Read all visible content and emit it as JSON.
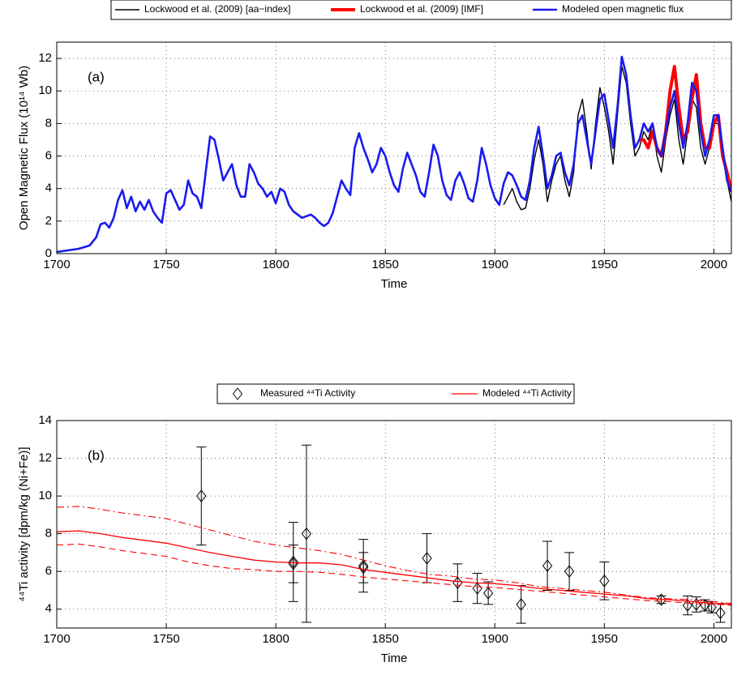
{
  "chart_data": [
    {
      "type": "line",
      "ylabel": "Open Magnetic Flux (10¹⁴ Wb)",
      "xlabel": "Time",
      "annotation": "(a)",
      "xlim": [
        1700,
        2008
      ],
      "ylim": [
        0,
        13
      ],
      "xticks": [
        1700,
        1750,
        1800,
        1850,
        1900,
        1950,
        2000
      ],
      "yticks": [
        0,
        2,
        4,
        6,
        8,
        10,
        12
      ],
      "grid": true,
      "legend": "top",
      "series": [
        {
          "name": "Lockwood et al. (2009) [aa−index]",
          "color": "#000000",
          "width": 1.4,
          "x": [
            1904,
            1906,
            1908,
            1910,
            1912,
            1914,
            1916,
            1918,
            1920,
            1922,
            1924,
            1926,
            1928,
            1930,
            1932,
            1934,
            1936,
            1938,
            1940,
            1942,
            1944,
            1946,
            1948,
            1950,
            1952,
            1954,
            1956,
            1958,
            1960,
            1962,
            1964,
            1966,
            1968,
            1970,
            1972,
            1974,
            1976,
            1978,
            1980,
            1982,
            1984,
            1986,
            1988,
            1990,
            1992,
            1994,
            1996,
            1998,
            2000,
            2002,
            2004,
            2006,
            2008
          ],
          "values": [
            3.0,
            3.5,
            4.0,
            3.2,
            2.7,
            2.8,
            4.0,
            5.8,
            7.0,
            5.5,
            3.2,
            4.5,
            5.5,
            6.0,
            4.5,
            3.5,
            5.0,
            8.5,
            9.5,
            7.5,
            5.2,
            8.0,
            10.2,
            9.0,
            7.5,
            5.5,
            8.5,
            11.5,
            10.5,
            8.0,
            6.0,
            6.5,
            7.5,
            7.0,
            8.0,
            6.0,
            5.0,
            7.0,
            8.5,
            9.5,
            7.0,
            5.5,
            7.5,
            9.5,
            9.0,
            6.5,
            5.5,
            6.5,
            8.0,
            8.0,
            6.0,
            4.5,
            3.2
          ]
        },
        {
          "name": "Lockwood et al. (2009) [IMF]",
          "color": "#ff0000",
          "width": 4,
          "x": [
            1966,
            1968,
            1970,
            1972,
            1974,
            1976,
            1978,
            1980,
            1982,
            1984,
            1986,
            1988,
            1990,
            1992,
            1994,
            1996,
            1998,
            2000,
            2002,
            2004,
            2006,
            2008
          ],
          "values": [
            7.0,
            7.0,
            6.5,
            7.5,
            6.5,
            6.0,
            7.5,
            10.0,
            11.5,
            9.0,
            7.0,
            7.5,
            9.5,
            11.0,
            8.0,
            6.5,
            6.5,
            8.0,
            8.5,
            6.0,
            5.0,
            3.8
          ]
        },
        {
          "name": "Modeled open magnetic flux",
          "color": "#1a1aee",
          "width": 2.6,
          "x": [
            1700,
            1705,
            1710,
            1715,
            1718,
            1720,
            1722,
            1724,
            1726,
            1728,
            1730,
            1732,
            1734,
            1736,
            1738,
            1740,
            1742,
            1744,
            1746,
            1748,
            1750,
            1752,
            1754,
            1756,
            1758,
            1760,
            1762,
            1764,
            1766,
            1768,
            1770,
            1772,
            1774,
            1776,
            1778,
            1780,
            1782,
            1784,
            1786,
            1788,
            1790,
            1792,
            1794,
            1796,
            1798,
            1800,
            1802,
            1804,
            1806,
            1808,
            1810,
            1812,
            1814,
            1816,
            1818,
            1820,
            1822,
            1824,
            1826,
            1828,
            1830,
            1832,
            1834,
            1836,
            1838,
            1840,
            1842,
            1844,
            1846,
            1848,
            1850,
            1852,
            1854,
            1856,
            1858,
            1860,
            1862,
            1864,
            1866,
            1868,
            1870,
            1872,
            1874,
            1876,
            1878,
            1880,
            1882,
            1884,
            1886,
            1888,
            1890,
            1892,
            1894,
            1896,
            1898,
            1900,
            1902,
            1904,
            1906,
            1908,
            1910,
            1912,
            1914,
            1916,
            1918,
            1920,
            1922,
            1924,
            1926,
            1928,
            1930,
            1932,
            1934,
            1936,
            1938,
            1940,
            1942,
            1944,
            1946,
            1948,
            1950,
            1952,
            1954,
            1956,
            1958,
            1960,
            1962,
            1964,
            1966,
            1968,
            1970,
            1972,
            1974,
            1976,
            1978,
            1980,
            1982,
            1984,
            1986,
            1988,
            1990,
            1992,
            1994,
            1996,
            1998,
            2000,
            2002,
            2004,
            2006,
            2008
          ],
          "values": [
            0.1,
            0.2,
            0.3,
            0.5,
            1.0,
            1.8,
            1.9,
            1.6,
            2.2,
            3.3,
            3.9,
            2.8,
            3.5,
            2.6,
            3.2,
            2.7,
            3.3,
            2.6,
            2.2,
            1.9,
            3.7,
            3.9,
            3.3,
            2.7,
            3.0,
            4.5,
            3.7,
            3.5,
            2.8,
            5.0,
            7.2,
            7.0,
            5.8,
            4.5,
            5.0,
            5.5,
            4.2,
            3.5,
            3.5,
            5.5,
            5.0,
            4.3,
            4.0,
            3.5,
            3.8,
            3.1,
            4.0,
            3.8,
            3.0,
            2.6,
            2.4,
            2.2,
            2.3,
            2.4,
            2.2,
            1.9,
            1.7,
            1.9,
            2.5,
            3.5,
            4.5,
            4.0,
            3.6,
            6.5,
            7.4,
            6.5,
            5.8,
            5.0,
            5.5,
            6.5,
            6.0,
            5.0,
            4.2,
            3.8,
            5.2,
            6.2,
            5.5,
            4.8,
            3.8,
            3.5,
            5.0,
            6.7,
            6.0,
            4.5,
            3.6,
            3.3,
            4.5,
            5.0,
            4.3,
            3.4,
            3.2,
            4.5,
            6.5,
            5.5,
            4.2,
            3.4,
            3.0,
            4.3,
            5.0,
            4.8,
            4.2,
            3.5,
            3.3,
            4.5,
            6.5,
            7.8,
            6.0,
            4.0,
            4.8,
            6.0,
            6.2,
            5.0,
            4.2,
            5.5,
            8.0,
            8.5,
            7.0,
            5.5,
            7.5,
            9.5,
            9.8,
            8.2,
            6.5,
            9.0,
            12.1,
            11.0,
            8.5,
            6.5,
            7.0,
            8.0,
            7.5,
            8.0,
            6.5,
            6.0,
            7.5,
            9.0,
            10.0,
            8.0,
            6.5,
            8.0,
            10.5,
            10.0,
            7.5,
            6.0,
            7.0,
            8.5,
            8.5,
            6.5,
            4.5,
            3.8
          ]
        }
      ]
    },
    {
      "type": "scatter",
      "ylabel": "⁴⁴Ti activity [dpm/kg (Ni+Fe)]",
      "xlabel": "Time",
      "annotation": "(b)",
      "xlim": [
        1700,
        2008
      ],
      "ylim": [
        3,
        14
      ],
      "xticks": [
        1700,
        1750,
        1800,
        1850,
        1900,
        1950,
        2000
      ],
      "yticks": [
        4,
        6,
        8,
        10,
        12,
        14
      ],
      "grid": true,
      "legend": "top",
      "series": [
        {
          "name": "Measured ⁴⁴Ti Activity",
          "color": "#000000",
          "marker": "diamond",
          "x": [
            1766,
            1808,
            1808,
            1814,
            1840,
            1840,
            1869,
            1883,
            1892,
            1897,
            1912,
            1924,
            1934,
            1950,
            1976,
            1988,
            1992,
            1996,
            1999,
            2003
          ],
          "values": [
            10.0,
            6.5,
            6.4,
            8.0,
            6.2,
            6.3,
            6.7,
            5.4,
            5.1,
            4.85,
            4.25,
            6.3,
            6.0,
            5.5,
            4.5,
            4.2,
            4.25,
            4.2,
            4.1,
            3.8
          ],
          "errors": [
            2.6,
            2.1,
            1.0,
            4.7,
            0.8,
            1.4,
            1.3,
            1.0,
            0.8,
            0.6,
            1.0,
            1.3,
            1.0,
            1.0,
            0.2,
            0.5,
            0.4,
            0.3,
            0.3,
            0.5
          ]
        },
        {
          "name": "Modeled ⁴⁴Ti Activity",
          "color": "#ff0000",
          "x": [
            1700,
            1710,
            1720,
            1730,
            1740,
            1750,
            1760,
            1770,
            1780,
            1790,
            1800,
            1810,
            1820,
            1830,
            1840,
            1850,
            1860,
            1870,
            1880,
            1890,
            1900,
            1910,
            1920,
            1930,
            1940,
            1950,
            1960,
            1970,
            1980,
            1990,
            2000,
            2008
          ],
          "values": [
            8.1,
            8.15,
            8.0,
            7.8,
            7.65,
            7.5,
            7.25,
            7.0,
            6.8,
            6.6,
            6.5,
            6.45,
            6.45,
            6.35,
            6.1,
            5.95,
            5.8,
            5.65,
            5.5,
            5.4,
            5.35,
            5.25,
            5.1,
            5.0,
            4.9,
            4.8,
            4.7,
            4.55,
            4.5,
            4.4,
            4.3,
            4.25
          ],
          "upper": [
            9.4,
            9.45,
            9.3,
            9.1,
            8.95,
            8.8,
            8.5,
            8.2,
            7.9,
            7.6,
            7.4,
            7.25,
            7.1,
            6.9,
            6.6,
            6.3,
            6.05,
            5.85,
            5.75,
            5.6,
            5.55,
            5.4,
            5.2,
            5.1,
            5.0,
            4.9,
            4.75,
            4.6,
            4.55,
            4.5,
            4.4,
            4.3
          ],
          "lower": [
            7.4,
            7.45,
            7.3,
            7.1,
            6.95,
            6.8,
            6.5,
            6.3,
            6.15,
            6.1,
            6.0,
            6.0,
            5.95,
            5.85,
            5.7,
            5.6,
            5.5,
            5.4,
            5.3,
            5.2,
            5.15,
            5.05,
            4.95,
            4.85,
            4.75,
            4.65,
            4.55,
            4.45,
            4.4,
            4.3,
            4.25,
            4.2
          ]
        }
      ]
    }
  ]
}
